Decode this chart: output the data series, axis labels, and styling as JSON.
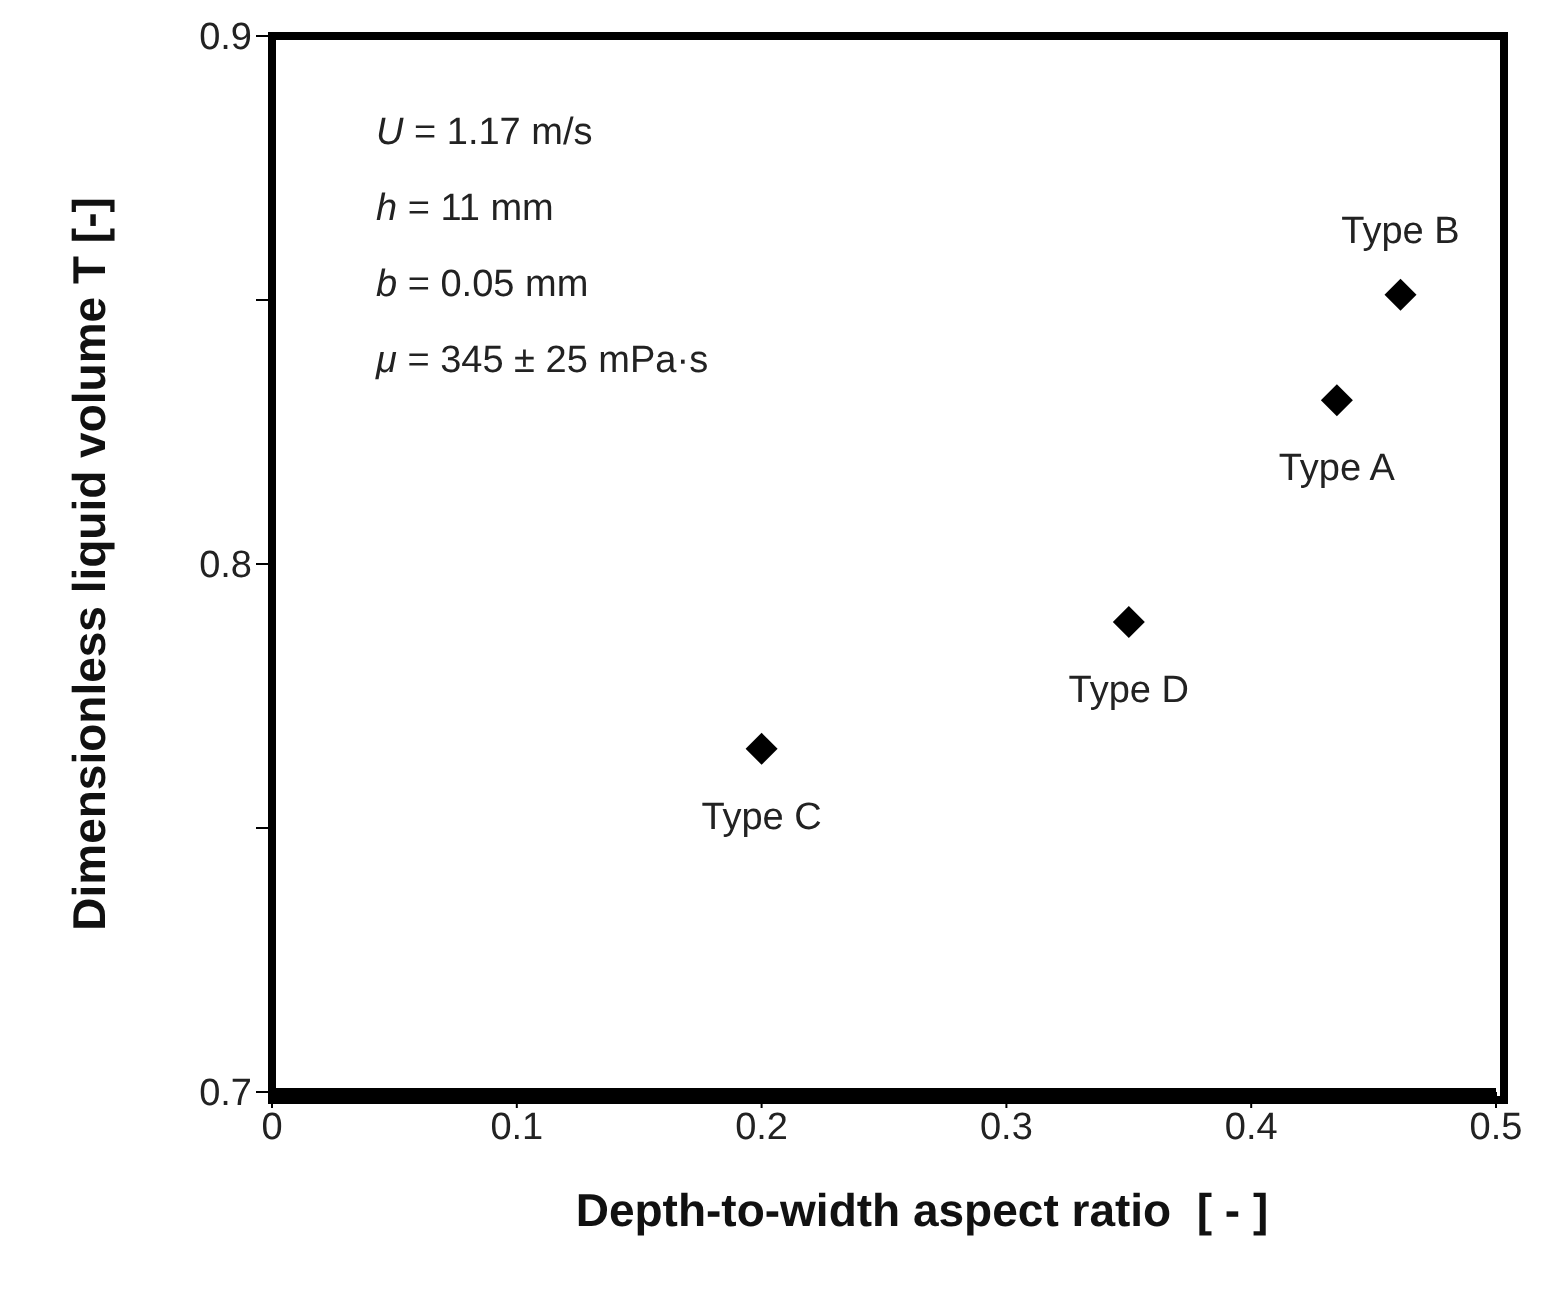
{
  "chart_data": {
    "type": "scatter",
    "xlabel": "Depth-to-width aspect ratio  [ - ]",
    "ylabel": "Dimensionless liquid volume T [-]",
    "x": [
      0.2,
      0.35,
      0.435,
      0.461
    ],
    "series": [
      {
        "color": "#000000",
        "values": [
          0.765,
          0.789,
          0.831,
          0.851
        ]
      }
    ],
    "marker": "diamond",
    "grid": false,
    "legend": false,
    "xlim": [
      0,
      0.5
    ],
    "xticks": [
      0,
      0.1,
      0.2,
      0.3,
      0.4,
      0.5
    ],
    "ylim": [
      0.7,
      0.9
    ],
    "yticks": [
      0.7,
      {
        "value": 0.75,
        "label": null
      },
      0.8,
      {
        "value": 0.85,
        "label": null
      },
      0.9
    ],
    "annotations": [
      "U = 1.17 m/s",
      "h = 11 mm",
      "b = 0.05 mm",
      "μ = 345 ± 25 mPa·s",
      {
        "text": "Type C",
        "x": 0.2,
        "y": 0.765
      },
      {
        "text": "Type D",
        "x": 0.35,
        "y": 0.789
      },
      {
        "text": "Type A",
        "x": 0.435,
        "y": 0.831
      },
      {
        "text": "Type B",
        "x": 0.461,
        "y": 0.851
      }
    ]
  }
}
